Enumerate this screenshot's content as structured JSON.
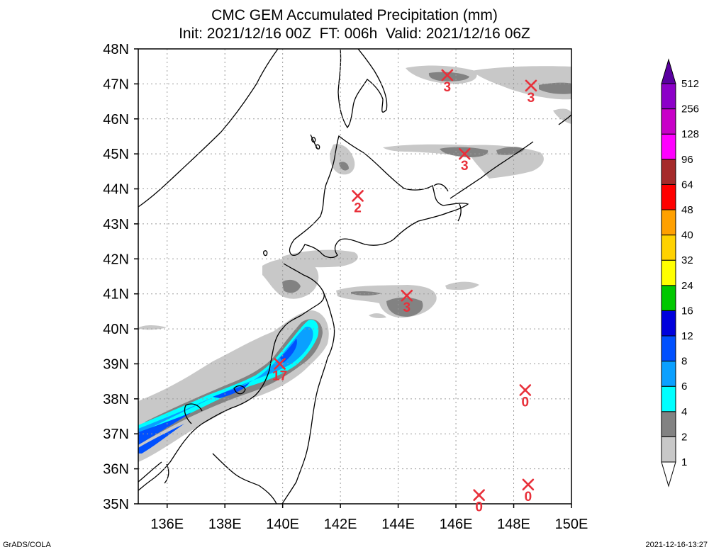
{
  "header": {
    "title_line1": "CMC GEM Accumulated Precipitation (mm)",
    "title_line2": "Init: 2021/12/16 00Z  FT: 006h  Valid: 2021/12/16 06Z"
  },
  "map": {
    "lon_range": [
      135,
      150
    ],
    "lat_range": [
      35,
      48
    ],
    "x_ticks": [
      "136E",
      "138E",
      "140E",
      "142E",
      "144E",
      "146E",
      "148E",
      "150E"
    ],
    "y_ticks": [
      "35N",
      "36N",
      "37N",
      "38N",
      "39N",
      "40N",
      "41N",
      "42N",
      "43N",
      "44N",
      "45N",
      "46N",
      "47N",
      "48N"
    ],
    "grid": "dotted"
  },
  "markers": [
    {
      "lon": 139.9,
      "lat": 39.0,
      "value": "17"
    },
    {
      "lon": 142.6,
      "lat": 43.8,
      "value": "2"
    },
    {
      "lon": 144.3,
      "lat": 40.95,
      "value": "3"
    },
    {
      "lon": 146.3,
      "lat": 45.0,
      "value": "3"
    },
    {
      "lon": 145.7,
      "lat": 47.25,
      "value": "3"
    },
    {
      "lon": 148.6,
      "lat": 46.95,
      "value": "3"
    },
    {
      "lon": 148.4,
      "lat": 38.25,
      "value": "0"
    },
    {
      "lon": 148.5,
      "lat": 35.55,
      "value": "0"
    },
    {
      "lon": 146.8,
      "lat": 35.25,
      "value": "0"
    }
  ],
  "colorbar": {
    "levels": [
      "1",
      "2",
      "4",
      "6",
      "8",
      "12",
      "16",
      "24",
      "32",
      "40",
      "48",
      "64",
      "96",
      "128",
      "256",
      "512"
    ],
    "colors": [
      "#ffffff",
      "#c8c8c8",
      "#828282",
      "#00ffff",
      "#0aa0ff",
      "#0050ff",
      "#0000dc",
      "#00c800",
      "#ffff00",
      "#ffd200",
      "#ffa000",
      "#ff0000",
      "#a52a2a",
      "#ff00ff",
      "#c800c8",
      "#8c00c8",
      "#5a00a0"
    ]
  },
  "footer": {
    "left": "GrADS/COLA",
    "right": "2021-12-16-13:27"
  }
}
